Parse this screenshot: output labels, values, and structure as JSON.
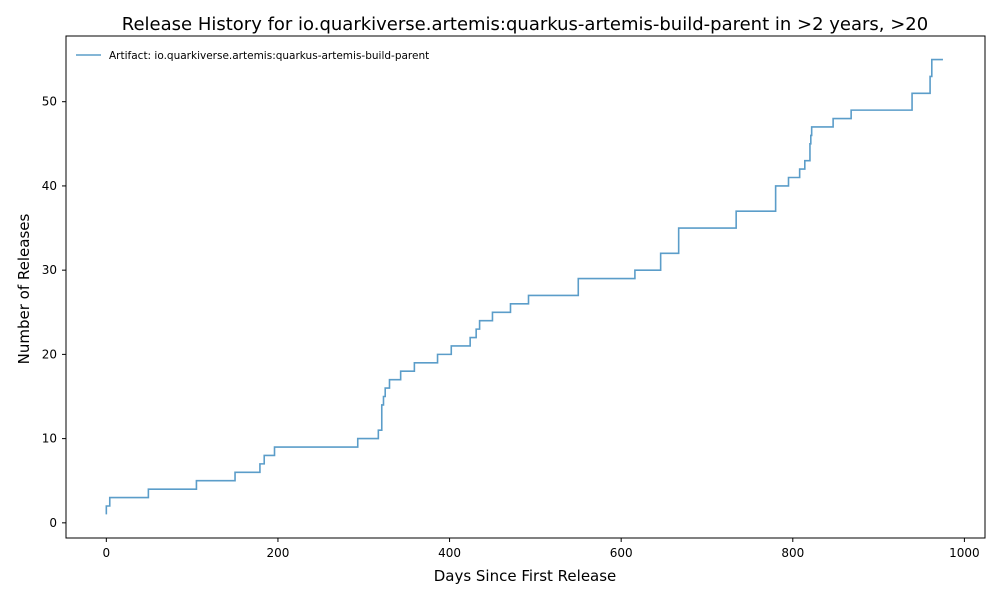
{
  "chart_data": {
    "type": "line",
    "title": "Release History for io.quarkiverse.artemis:quarkus-artemis-build-parent in >2 years, >20",
    "xlabel": "Days Since First Release",
    "ylabel": "Number of Releases",
    "xlim": [
      -47,
      1024
    ],
    "ylim": [
      -1.8,
      57.8
    ],
    "xticks": [
      0,
      200,
      400,
      600,
      800,
      1000
    ],
    "yticks": [
      0,
      10,
      20,
      30,
      40,
      50
    ],
    "grid": false,
    "legend_position": "top-left",
    "step": "post",
    "color": "#5b9dc9",
    "series": [
      {
        "name": "Artifact: io.quarkiverse.artemis:quarkus-artemis-build-parent",
        "points": [
          [
            0,
            1
          ],
          [
            0,
            2
          ],
          [
            4,
            3
          ],
          [
            49,
            4
          ],
          [
            105,
            5
          ],
          [
            150,
            6
          ],
          [
            179,
            7
          ],
          [
            184,
            8
          ],
          [
            196,
            9
          ],
          [
            293,
            10
          ],
          [
            317,
            11
          ],
          [
            321,
            14
          ],
          [
            323,
            15
          ],
          [
            325,
            16
          ],
          [
            330,
            17
          ],
          [
            343,
            18
          ],
          [
            359,
            19
          ],
          [
            386,
            20
          ],
          [
            402,
            21
          ],
          [
            424,
            22
          ],
          [
            431,
            23
          ],
          [
            435,
            24
          ],
          [
            450,
            25
          ],
          [
            471,
            26
          ],
          [
            492,
            27
          ],
          [
            550,
            29
          ],
          [
            616,
            30
          ],
          [
            646,
            32
          ],
          [
            667,
            35
          ],
          [
            734,
            37
          ],
          [
            780,
            40
          ],
          [
            795,
            41
          ],
          [
            808,
            42
          ],
          [
            814,
            43
          ],
          [
            820,
            45
          ],
          [
            821,
            46
          ],
          [
            822,
            47
          ],
          [
            847,
            48
          ],
          [
            868,
            49
          ],
          [
            939,
            51
          ],
          [
            960,
            53
          ],
          [
            962,
            55
          ],
          [
            975,
            55
          ]
        ]
      }
    ]
  }
}
